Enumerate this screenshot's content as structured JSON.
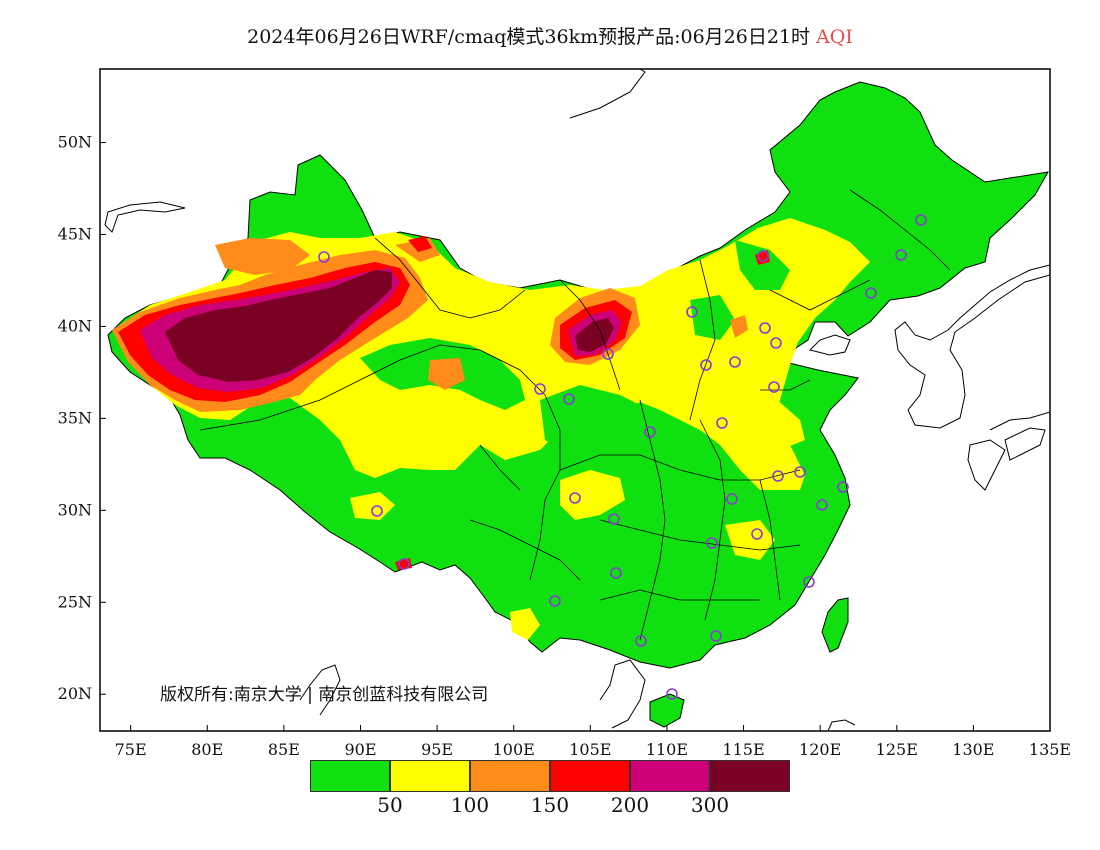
{
  "title": {
    "main": "2024年06月26日WRF/cmaq模式36km预报产品:06月26日21时",
    "product": "AQI"
  },
  "map": {
    "latitude_ticks": [
      "50N",
      "45N",
      "40N",
      "35N",
      "30N",
      "25N",
      "20N"
    ],
    "longitude_ticks": [
      "75E",
      "80E",
      "85E",
      "90E",
      "95E",
      "100E",
      "105E",
      "110E",
      "115E",
      "120E",
      "125E",
      "130E",
      "135E"
    ],
    "lat_range": [
      18,
      54
    ],
    "lon_range": [
      73,
      135
    ]
  },
  "copyright": "版权所有:南京大学 | 南京创蓝科技有限公司",
  "legend": {
    "colors": [
      "#10e010",
      "#ffff00",
      "#ff8c1a",
      "#ff0000",
      "#cc0077",
      "#7a0024"
    ],
    "labels": [
      "50",
      "100",
      "150",
      "200",
      "300"
    ]
  },
  "colors": {
    "good": "#10e010",
    "moderate": "#ffff00",
    "sensitive": "#ff8c1a",
    "unhealthy": "#ff0000",
    "very_unhealthy": "#cc0077",
    "hazardous": "#7a0024",
    "station_marker": "#8a3ad6"
  }
}
